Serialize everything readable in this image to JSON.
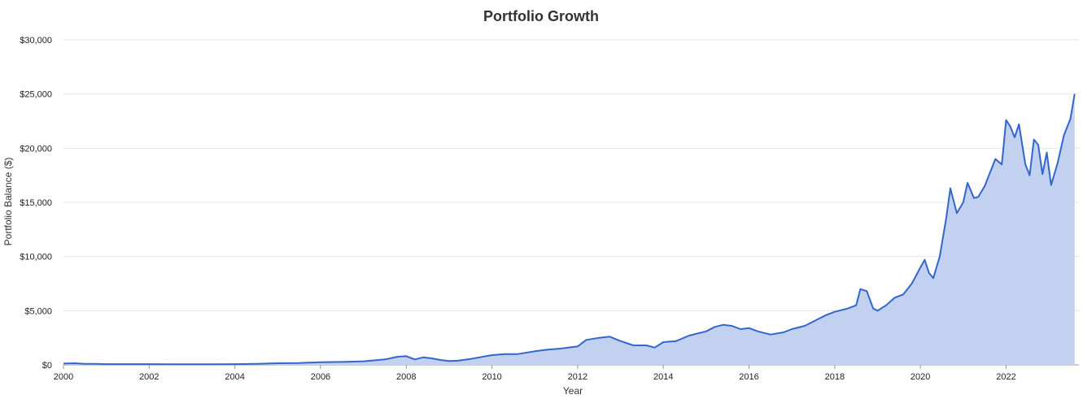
{
  "chart_data": {
    "type": "area",
    "title": "Portfolio Growth",
    "xlabel": "Year",
    "ylabel": "Portfolio Balance ($)",
    "xlim": [
      2000,
      2023.7
    ],
    "ylim": [
      0,
      30000
    ],
    "x_ticks": [
      2000,
      2002,
      2004,
      2006,
      2008,
      2010,
      2012,
      2014,
      2016,
      2018,
      2020,
      2022
    ],
    "x_tick_labels": [
      "2000",
      "2002",
      "2004",
      "2006",
      "2008",
      "2010",
      "2012",
      "2014",
      "2016",
      "2018",
      "2020",
      "2022"
    ],
    "y_ticks": [
      0,
      5000,
      10000,
      15000,
      20000,
      25000,
      30000
    ],
    "y_tick_labels": [
      "$0",
      "$5,000",
      "$10,000",
      "$15,000",
      "$20,000",
      "$25,000",
      "$30,000"
    ],
    "grid": true,
    "colors": {
      "line": "#3366cc",
      "fill": "#c2d1f0"
    },
    "series": [
      {
        "x": [
          2000.0,
          2000.25,
          2000.5,
          2000.75,
          2001.0,
          2001.5,
          2002.0,
          2002.5,
          2003.0,
          2003.5,
          2004.0,
          2004.5,
          2005.0,
          2005.5,
          2006.0,
          2006.3,
          2006.6,
          2007.0,
          2007.5,
          2007.8,
          2008.0,
          2008.2,
          2008.4,
          2008.6,
          2008.8,
          2009.0,
          2009.2,
          2009.5,
          2010.0,
          2010.3,
          2010.6,
          2011.0,
          2011.3,
          2011.6,
          2012.0,
          2012.2,
          2012.5,
          2012.75,
          2013.0,
          2013.3,
          2013.6,
          2013.8,
          2014.0,
          2014.3,
          2014.6,
          2015.0,
          2015.2,
          2015.4,
          2015.6,
          2015.8,
          2016.0,
          2016.2,
          2016.5,
          2016.8,
          2017.0,
          2017.3,
          2017.6,
          2017.8,
          2018.0,
          2018.3,
          2018.5,
          2018.6,
          2018.75,
          2018.9,
          2019.0,
          2019.2,
          2019.4,
          2019.6,
          2019.8,
          2020.0,
          2020.1,
          2020.2,
          2020.3,
          2020.45,
          2020.6,
          2020.7,
          2020.85,
          2021.0,
          2021.1,
          2021.25,
          2021.35,
          2021.5,
          2021.6,
          2021.75,
          2021.9,
          2022.0,
          2022.1,
          2022.2,
          2022.3,
          2022.45,
          2022.55,
          2022.65,
          2022.75,
          2022.85,
          2022.95,
          2023.05,
          2023.2,
          2023.35,
          2023.5,
          2023.6
        ],
        "y": [
          120,
          150,
          100,
          90,
          70,
          70,
          65,
          60,
          55,
          60,
          65,
          90,
          150,
          170,
          250,
          260,
          280,
          330,
          500,
          750,
          800,
          500,
          700,
          600,
          450,
          350,
          380,
          550,
          900,
          1000,
          1000,
          1250,
          1400,
          1500,
          1700,
          2300,
          2500,
          2600,
          2200,
          1800,
          1800,
          1600,
          2100,
          2200,
          2700,
          3100,
          3500,
          3700,
          3600,
          3300,
          3400,
          3100,
          2800,
          3000,
          3300,
          3600,
          4200,
          4600,
          4900,
          5200,
          5500,
          7000,
          6800,
          5200,
          5000,
          5500,
          6200,
          6500,
          7500,
          9000,
          9700,
          8500,
          8000,
          10000,
          13500,
          16300,
          14000,
          15000,
          16800,
          15400,
          15500,
          16500,
          17500,
          19000,
          18500,
          22600,
          22000,
          21000,
          22200,
          18500,
          17500,
          20800,
          20300,
          17600,
          19600,
          16600,
          18600,
          21200,
          22700,
          25000
        ]
      }
    ]
  }
}
